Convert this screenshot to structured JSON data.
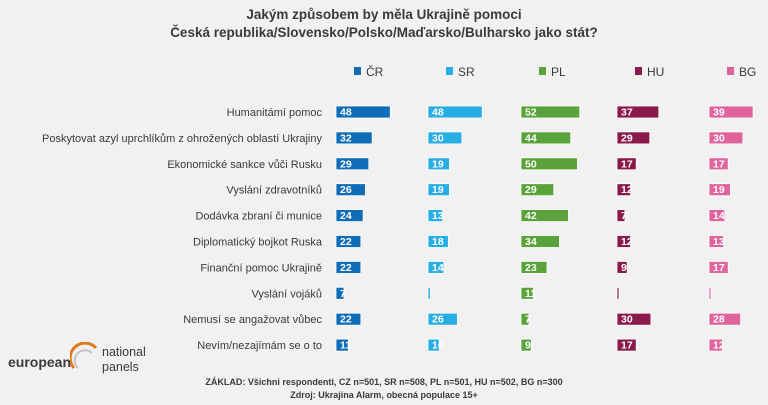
{
  "title_line1": "Jakým způsobem by měla Ukrajině pomoci",
  "title_line2": "Česká republika/Slovensko/Polsko/Maďarsko/Bulharsko jako stát?",
  "logo": {
    "word": "european",
    "line1": "national",
    "line2": "panels"
  },
  "footer_line1": "ZÁKLAD: Všichni respondenti, CZ n=501, SR n=508, PL n=501, HU n=502, BG n=300",
  "footer_line2": "Zdroj: Ukrajina Alarm, obecná populace 15+",
  "chart_data": {
    "type": "bar",
    "title": "Jakým způsobem by měla Ukrajině pomoci Česká republika/Slovensko/Polsko/Maďarsko/Bulharsko jako stát?",
    "categories": [
      "Humanitámí pomoc",
      "Poskytovat azyl uprchlíkům z ohrožených oblastí Ukrajiny",
      "Ekonomické sankce vůči Rusku",
      "Vyslání zdravotníků",
      "Dodávka zbraní či munice",
      "Diplomatický bojkot Ruska",
      "Finanční pomoc Ukrajině",
      "Vyslání vojáků",
      "Nemusí se angažovat vůbec",
      "Nevím/nezajímám se o to"
    ],
    "series": [
      {
        "name": "ČR",
        "color": "#0f6cb6",
        "values": [
          48,
          32,
          29,
          26,
          24,
          22,
          22,
          7,
          22,
          11
        ]
      },
      {
        "name": "SR",
        "color": "#29aee3",
        "values": [
          48,
          30,
          19,
          19,
          13,
          18,
          14,
          2,
          26,
          10
        ]
      },
      {
        "name": "PL",
        "color": "#5aa33a",
        "values": [
          52,
          44,
          50,
          29,
          42,
          34,
          23,
          11,
          7,
          9
        ]
      },
      {
        "name": "HU",
        "color": "#8a1a4a",
        "values": [
          37,
          29,
          17,
          12,
          7,
          12,
          9,
          1,
          30,
          17
        ]
      },
      {
        "name": "BG",
        "color": "#e0649c",
        "values": [
          39,
          30,
          17,
          19,
          14,
          13,
          17,
          1,
          28,
          12
        ]
      }
    ],
    "unit": "%",
    "legend_position": "top",
    "show_value_labels_min": 5
  }
}
